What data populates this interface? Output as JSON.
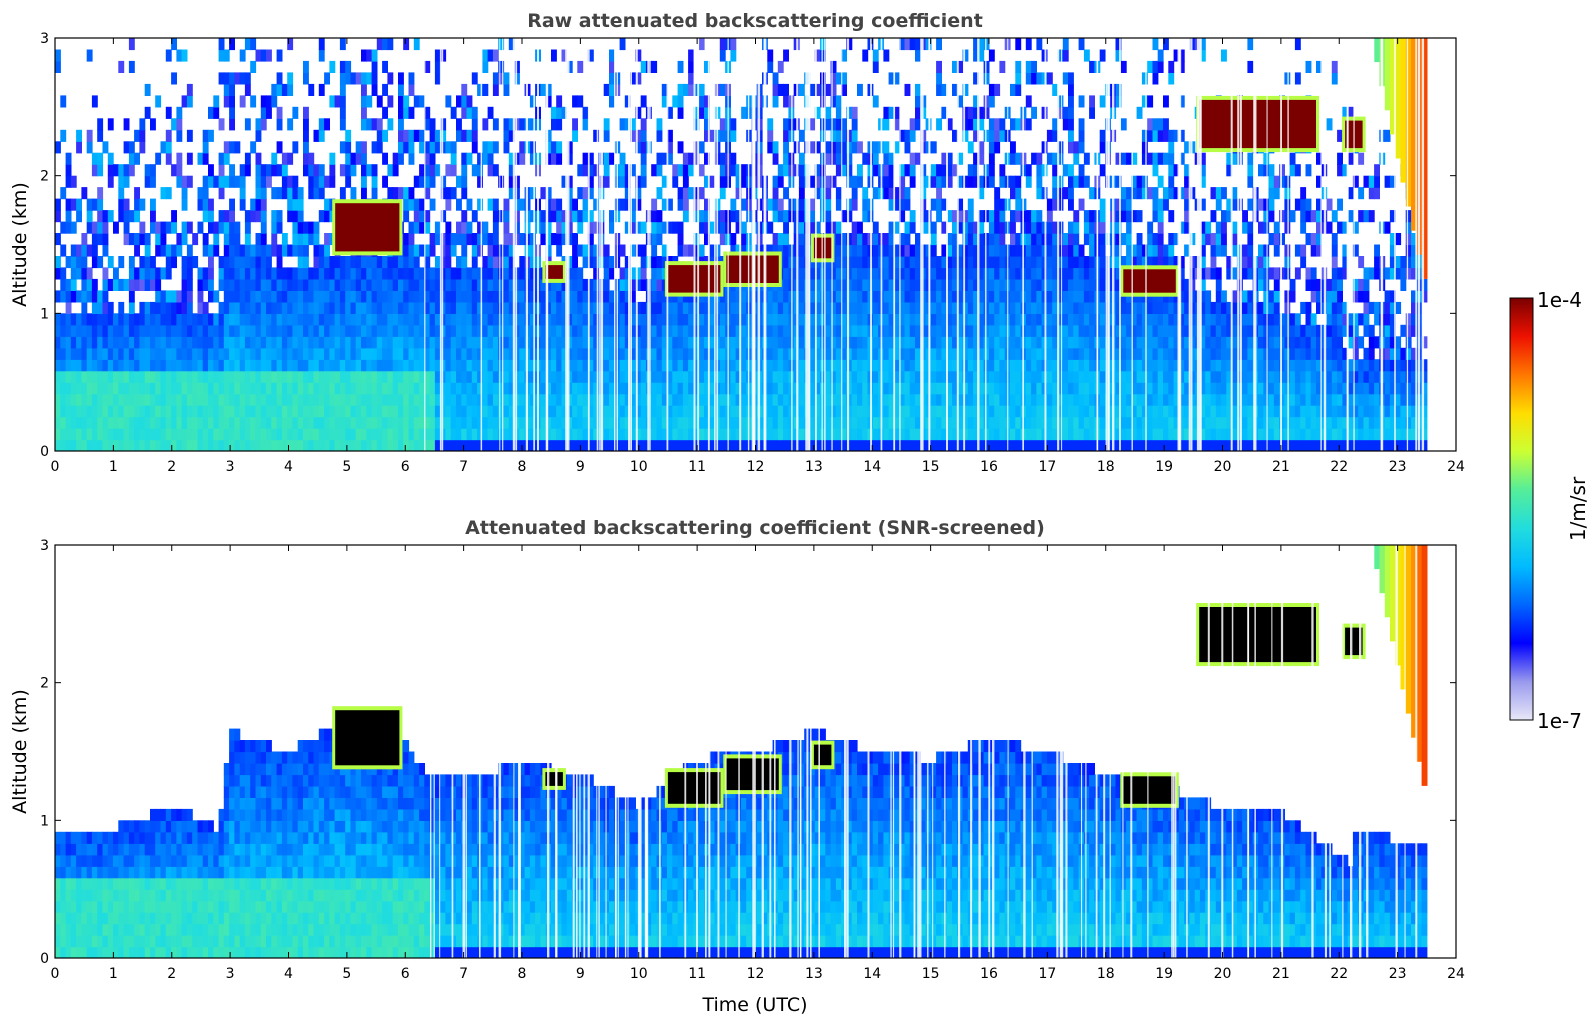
{
  "chart_data": [
    {
      "type": "heatmap",
      "title": "Raw attenuated backscattering coefficient",
      "xlabel": "",
      "ylabel": "Altitude (km)",
      "xlim": [
        0,
        24
      ],
      "ylim": [
        0,
        3
      ],
      "x_ticks": [
        0,
        1,
        2,
        3,
        4,
        5,
        6,
        7,
        8,
        9,
        10,
        11,
        12,
        13,
        14,
        15,
        16,
        17,
        18,
        19,
        20,
        21,
        22,
        23,
        24
      ],
      "y_ticks": [
        0,
        1,
        2,
        3
      ],
      "x_tick_labels": [
        "0",
        "1",
        "2",
        "3",
        "4",
        "5",
        "6",
        "7",
        "8",
        "9",
        "10",
        "11",
        "12",
        "13",
        "14",
        "15",
        "16",
        "17",
        "18",
        "19",
        "20",
        "21",
        "22",
        "23",
        "24"
      ],
      "y_tick_labels": [
        "0",
        "1",
        "2",
        "3"
      ],
      "variant": "raw",
      "data_end_hour": 23.5,
      "boundary_layer_top_km": [
        [
          0,
          1.0
        ],
        [
          2,
          1.05
        ],
        [
          2.8,
          0.95
        ],
        [
          3,
          1.55
        ],
        [
          4,
          1.3
        ],
        [
          5,
          1.45
        ],
        [
          6,
          1.45
        ],
        [
          6.5,
          1.3
        ],
        [
          8,
          1.35
        ],
        [
          9,
          1.3
        ],
        [
          10,
          1.1
        ],
        [
          11,
          1.35
        ],
        [
          12,
          1.45
        ],
        [
          13,
          1.6
        ],
        [
          14,
          1.5
        ],
        [
          15,
          1.4
        ],
        [
          16,
          1.55
        ],
        [
          17,
          1.5
        ],
        [
          18,
          1.35
        ],
        [
          19,
          1.25
        ],
        [
          20,
          1.1
        ],
        [
          21,
          1.0
        ],
        [
          22,
          0.85
        ],
        [
          22.2,
          0.6
        ],
        [
          23.5,
          0.7
        ]
      ],
      "cloud_layers": [
        {
          "x_start": 4.8,
          "x_end": 5.9,
          "base_km": 1.45,
          "top_km": 1.8
        },
        {
          "x_start": 8.4,
          "x_end": 8.7,
          "base_km": 1.25,
          "top_km": 1.35
        },
        {
          "x_start": 10.5,
          "x_end": 11.4,
          "base_km": 1.15,
          "top_km": 1.35
        },
        {
          "x_start": 11.5,
          "x_end": 12.4,
          "base_km": 1.22,
          "top_km": 1.42
        },
        {
          "x_start": 13.0,
          "x_end": 13.3,
          "base_km": 1.4,
          "top_km": 1.55
        },
        {
          "x_start": 18.3,
          "x_end": 19.2,
          "base_km": 1.15,
          "top_km": 1.32
        },
        {
          "x_start": 19.6,
          "x_end": 21.6,
          "base_km": 2.2,
          "top_km": 2.55
        },
        {
          "x_start": 22.1,
          "x_end": 22.4,
          "base_km": 2.2,
          "top_km": 2.4
        }
      ],
      "virga": {
        "x_start": 22.6,
        "x_end": 23.5,
        "base_km": 1.25,
        "top_km": 3.0
      }
    },
    {
      "type": "heatmap",
      "title": "Attenuated backscattering coefficient (SNR-screened)",
      "xlabel": "Time (UTC)",
      "ylabel": "Altitude (km)",
      "xlim": [
        0,
        24
      ],
      "ylim": [
        0,
        3
      ],
      "x_ticks": [
        0,
        1,
        2,
        3,
        4,
        5,
        6,
        7,
        8,
        9,
        10,
        11,
        12,
        13,
        14,
        15,
        16,
        17,
        18,
        19,
        20,
        21,
        22,
        23,
        24
      ],
      "y_ticks": [
        0,
        1,
        2,
        3
      ],
      "x_tick_labels": [
        "0",
        "1",
        "2",
        "3",
        "4",
        "5",
        "6",
        "7",
        "8",
        "9",
        "10",
        "11",
        "12",
        "13",
        "14",
        "15",
        "16",
        "17",
        "18",
        "19",
        "20",
        "21",
        "22",
        "23",
        "24"
      ],
      "y_tick_labels": [
        "0",
        "1",
        "2",
        "3"
      ],
      "variant": "screened",
      "data_end_hour": 23.5,
      "boundary_layer_top_km": [
        [
          0,
          0.9
        ],
        [
          1,
          0.95
        ],
        [
          2,
          1.1
        ],
        [
          2.8,
          0.95
        ],
        [
          3,
          1.65
        ],
        [
          4,
          1.5
        ],
        [
          5,
          1.75
        ],
        [
          6,
          1.55
        ],
        [
          6.5,
          1.3
        ],
        [
          8,
          1.4
        ],
        [
          9,
          1.35
        ],
        [
          10,
          1.1
        ],
        [
          11,
          1.45
        ],
        [
          12,
          1.5
        ],
        [
          13,
          1.65
        ],
        [
          14,
          1.5
        ],
        [
          15,
          1.45
        ],
        [
          16,
          1.6
        ],
        [
          17,
          1.5
        ],
        [
          18,
          1.35
        ],
        [
          19,
          1.25
        ],
        [
          20,
          1.1
        ],
        [
          21,
          1.05
        ],
        [
          21.5,
          0.9
        ],
        [
          22.2,
          0.7
        ],
        [
          22.3,
          0.95
        ],
        [
          23.5,
          0.8
        ]
      ],
      "cloud_layers": [
        {
          "x_start": 4.8,
          "x_end": 5.9,
          "base_km": 1.4,
          "top_km": 1.8
        },
        {
          "x_start": 8.4,
          "x_end": 8.7,
          "base_km": 1.25,
          "top_km": 1.35
        },
        {
          "x_start": 10.5,
          "x_end": 11.4,
          "base_km": 1.12,
          "top_km": 1.35
        },
        {
          "x_start": 11.5,
          "x_end": 12.4,
          "base_km": 1.22,
          "top_km": 1.45
        },
        {
          "x_start": 13.0,
          "x_end": 13.3,
          "base_km": 1.4,
          "top_km": 1.55
        },
        {
          "x_start": 18.3,
          "x_end": 19.2,
          "base_km": 1.12,
          "top_km": 1.32
        },
        {
          "x_start": 19.6,
          "x_end": 21.6,
          "base_km": 2.15,
          "top_km": 2.55
        },
        {
          "x_start": 22.1,
          "x_end": 22.4,
          "base_km": 2.2,
          "top_km": 2.4
        }
      ],
      "virga": {
        "x_start": 22.6,
        "x_end": 23.5,
        "base_km": 1.25,
        "top_km": 3.0
      }
    }
  ],
  "colorbar": {
    "label": "1/m/sr",
    "max_label": "1e-4",
    "min_label": "1e-7",
    "range": [
      1e-07,
      0.0001
    ],
    "scale": "log",
    "colormap": [
      "#e8e8f8",
      "#9999ee",
      "#0000ff",
      "#0066ff",
      "#00bbff",
      "#22dddd",
      "#55ee99",
      "#ccff33",
      "#ffdd00",
      "#ff7700",
      "#ee1100",
      "#7a0000"
    ]
  }
}
